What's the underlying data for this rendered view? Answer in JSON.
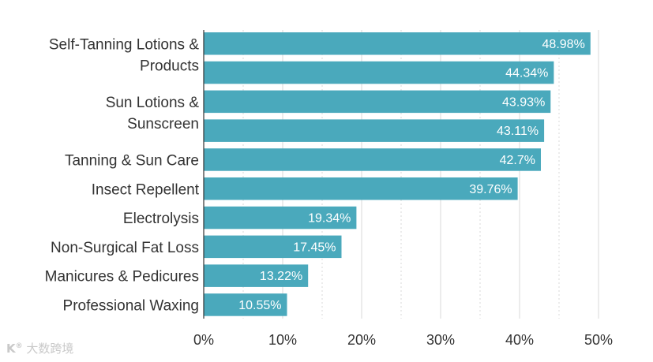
{
  "chart_data": {
    "type": "bar",
    "orientation": "horizontal",
    "title": "",
    "xlabel": "",
    "ylabel": "",
    "xlim": [
      0,
      50
    ],
    "grid": true,
    "tick_values": [
      0,
      10,
      20,
      30,
      40,
      50
    ],
    "tick_labels": [
      "0%",
      "10%",
      "20%",
      "30%",
      "40%",
      "50%"
    ],
    "bar_color": "#4aa9bc",
    "categories": [
      [
        "Self-Tanning Lotions &",
        "Products"
      ],
      [],
      [
        "Sun Lotions &",
        "Sunscreen"
      ],
      [],
      [
        "Tanning & Sun Care"
      ],
      [
        "Insect Repellent"
      ],
      [
        "Electrolysis"
      ],
      [
        "Non-Surgical Fat Loss"
      ],
      [
        "Manicures & Pedicures"
      ],
      [
        "Professional Waxing"
      ]
    ],
    "values": [
      48.98,
      44.34,
      43.93,
      43.11,
      42.7,
      39.76,
      19.34,
      17.45,
      13.22,
      10.55
    ],
    "value_labels": [
      "48.98%",
      "44.34%",
      "43.93%",
      "43.11%",
      "42.7%",
      "39.76%",
      "19.34%",
      "17.45%",
      "13.22%",
      "10.55%"
    ]
  },
  "watermark": {
    "text": "大数跨境",
    "logo_text": "K"
  }
}
